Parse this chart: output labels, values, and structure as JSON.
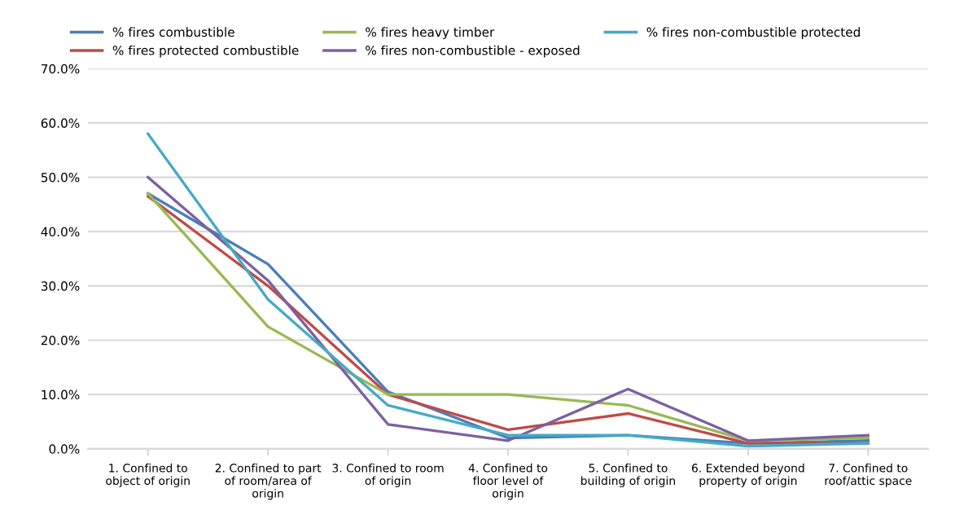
{
  "chart_data": {
    "type": "line",
    "categories": [
      "1. Confined to object of origin",
      "2. Confined to part of room/area of origin",
      "3. Confined to room of origin",
      "4. Confined to floor level of origin",
      "5. Confined to building of origin",
      "6. Extended beyond property of origin",
      "7. Confined to roof/attic space"
    ],
    "series": [
      {
        "name": "% fires combustible",
        "color": "#4a7ebb",
        "values": [
          47,
          34,
          10.5,
          2,
          2.5,
          1,
          1.5
        ]
      },
      {
        "name": "% fires protected combustible",
        "color": "#be4b48",
        "values": [
          46.5,
          30,
          10,
          3.5,
          6.5,
          1,
          1
        ]
      },
      {
        "name": "% fires heavy timber",
        "color": "#98b954",
        "values": [
          47,
          22.5,
          10,
          10,
          8,
          1.5,
          2
        ]
      },
      {
        "name": "% fires non-combustible - exposed",
        "color": "#7d60a0",
        "values": [
          50,
          31,
          4.5,
          1.5,
          11,
          1.5,
          2.5
        ]
      },
      {
        "name": "% fires non-combustible protected",
        "color": "#46aac5",
        "values": [
          58,
          27.5,
          8,
          2.5,
          2.5,
          0.5,
          1
        ]
      }
    ],
    "ylim": [
      0,
      70
    ],
    "yticks": [
      {
        "value": 0,
        "label": "0.0%"
      },
      {
        "value": 10,
        "label": "10.0%"
      },
      {
        "value": 20,
        "label": "20.0%"
      },
      {
        "value": 30,
        "label": "30.0%"
      },
      {
        "value": 40,
        "label": "40.0%"
      },
      {
        "value": 50,
        "label": "50.0%"
      },
      {
        "value": 60,
        "label": "60.0%"
      },
      {
        "value": 70,
        "label": "70.0%"
      }
    ],
    "grid": "y",
    "legend": "top",
    "marker": "none",
    "line_style": "solid"
  }
}
